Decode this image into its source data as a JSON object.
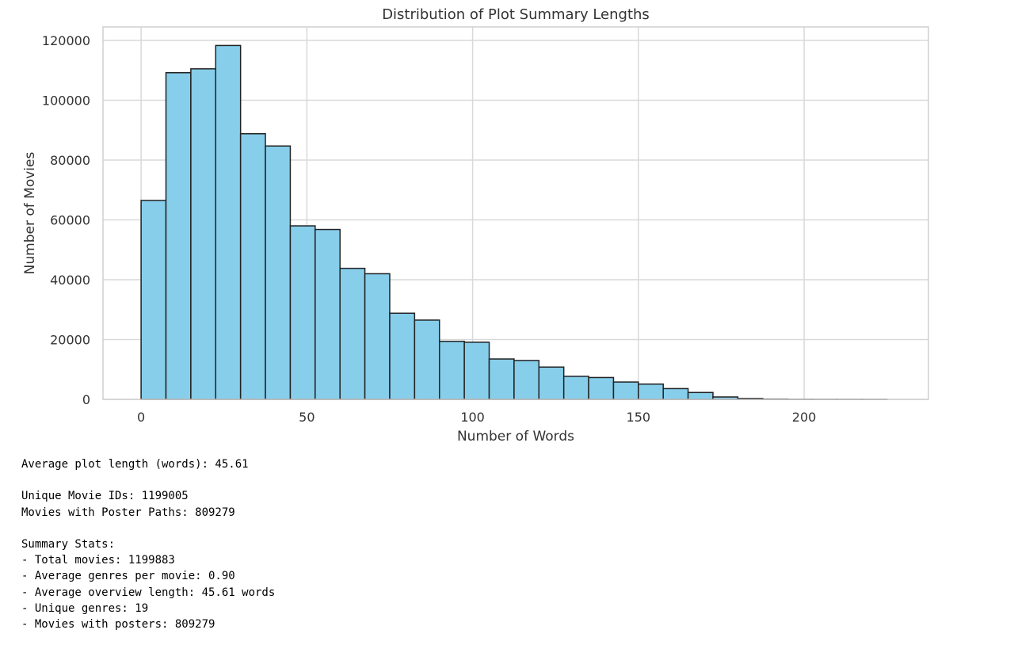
{
  "chart_data": {
    "type": "bar",
    "title": "Distribution of Plot Summary Lengths",
    "xlabel": "Number of Words",
    "ylabel": "Number of Movies",
    "xlim": [
      -11.5,
      237.5
    ],
    "ylim": [
      0,
      124500
    ],
    "xticks": [
      0,
      50,
      100,
      150,
      200
    ],
    "yticks": [
      0,
      20000,
      40000,
      60000,
      80000,
      100000,
      120000
    ],
    "grid": true,
    "bar_color": "#87ceeb",
    "edge_color": "#222222",
    "bin_edges": [
      0,
      7.5,
      15,
      22.5,
      30,
      37.5,
      45,
      52.5,
      60,
      67.5,
      75,
      82.5,
      90,
      97.5,
      105,
      112.5,
      120,
      127.5,
      135,
      142.5,
      150,
      157.5,
      165,
      172.5,
      180,
      187.5,
      195,
      202.5,
      210,
      217.5,
      225
    ],
    "values": [
      66500,
      109200,
      110500,
      118300,
      88800,
      84700,
      58000,
      56800,
      43800,
      42000,
      28800,
      26500,
      19400,
      19100,
      13500,
      13000,
      10800,
      7700,
      7300,
      5800,
      5100,
      3600,
      2300,
      800,
      300,
      100,
      50,
      30,
      20,
      10
    ]
  },
  "output": {
    "avg_plot_length": "Average plot length (words): 45.61",
    "unique_ids": "Unique Movie IDs: 1199005",
    "poster_paths": "Movies with Poster Paths: 809279",
    "summary_header": "Summary Stats:",
    "total_movies": "- Total movies: 1199883",
    "avg_genres": "- Average genres per movie: 0.90",
    "avg_overview": "- Average overview length: 45.61 words",
    "unique_genres": "- Unique genres: 19",
    "with_posters": "- Movies with posters: 809279"
  }
}
